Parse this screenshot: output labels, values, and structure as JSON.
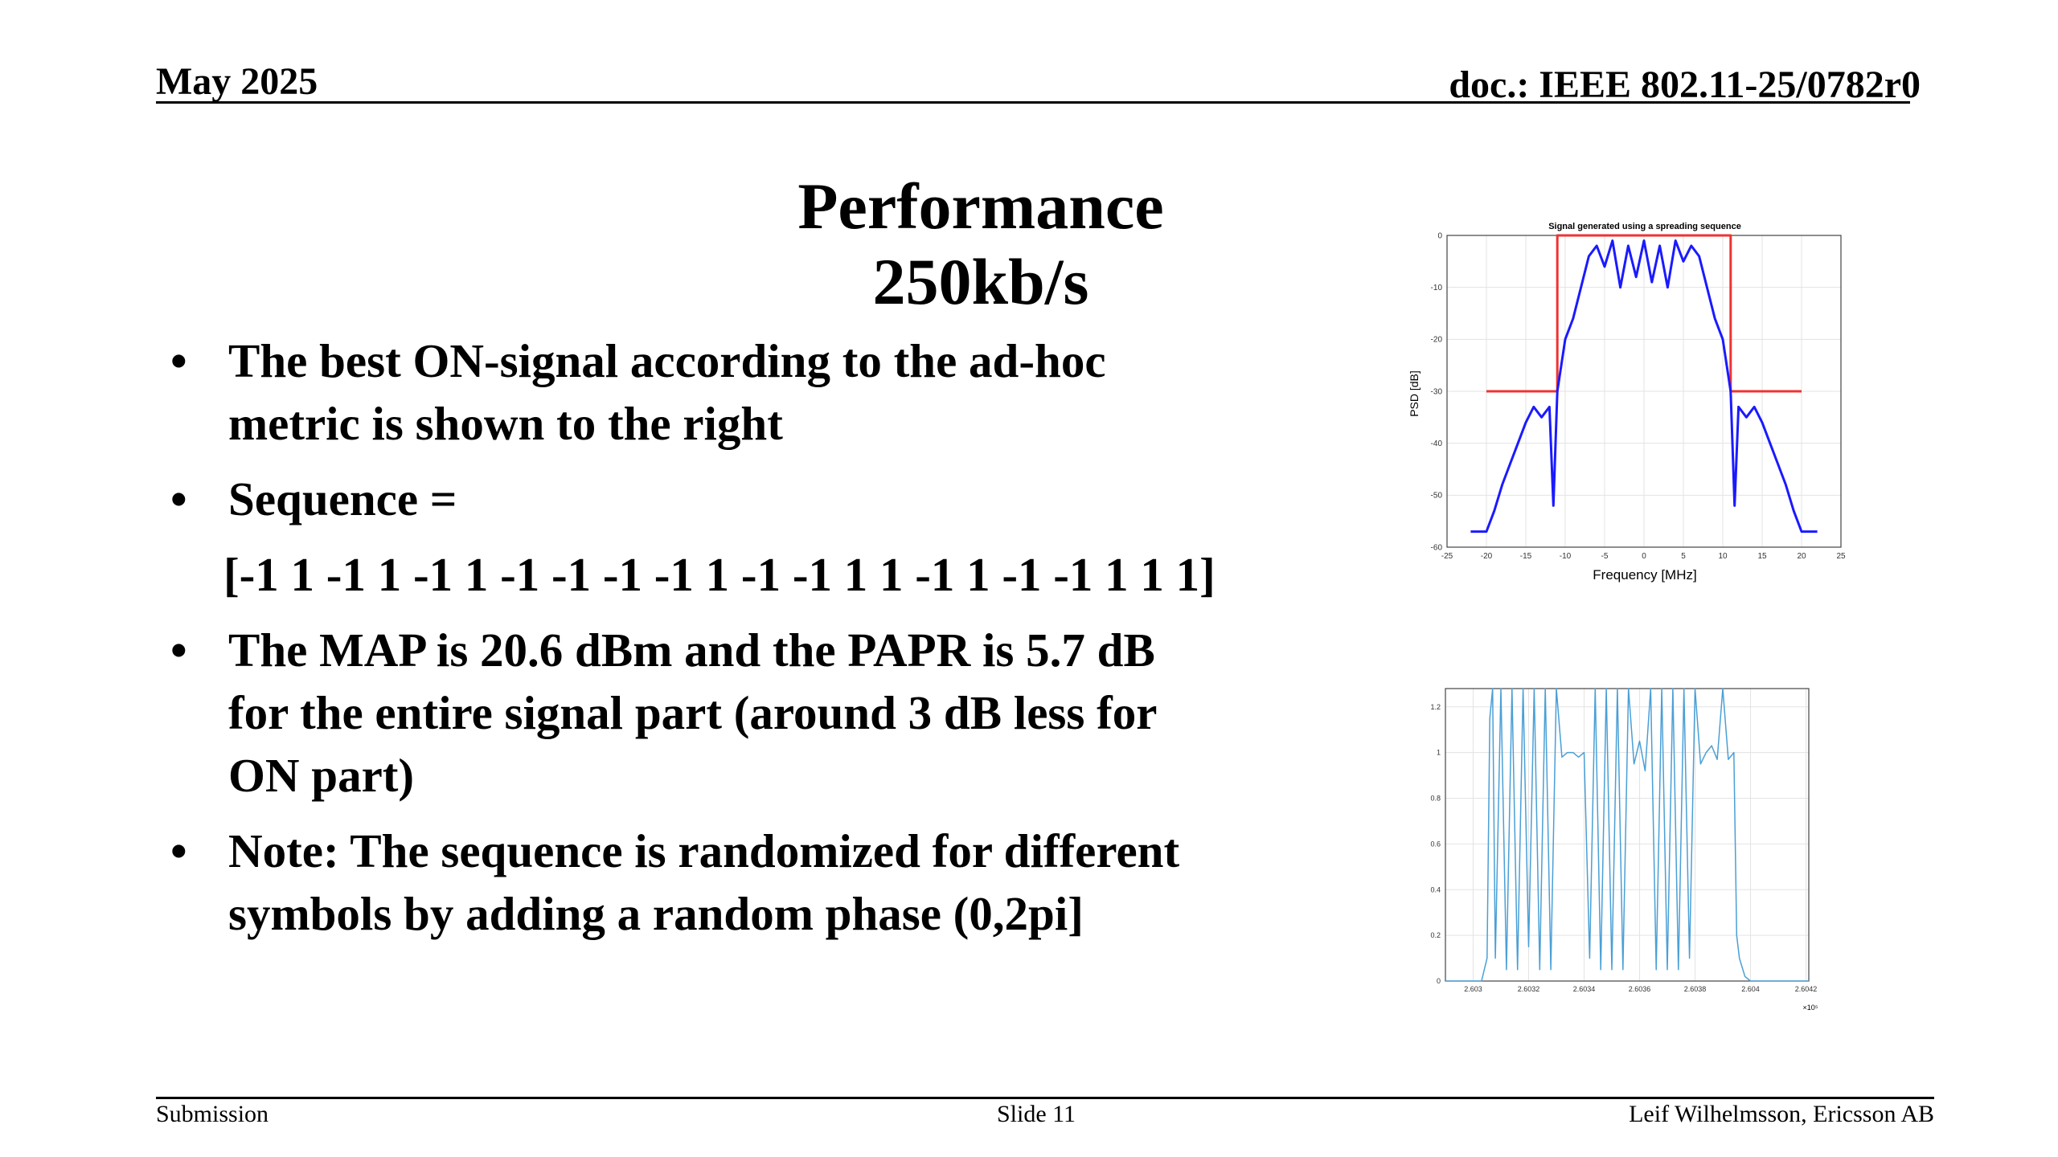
{
  "header": {
    "date": "May 2025",
    "doc": "doc.: IEEE 802.11-25/0782r0"
  },
  "title": "Performance 250kb/s",
  "bullets": [
    {
      "lines": [
        "The best ON-signal according to the ad-hoc",
        "metric is shown to the right"
      ]
    },
    {
      "lines": [
        "Sequence ="
      ]
    },
    {
      "lines": [
        "The MAP is 20.6 dBm and the PAPR is 5.7 dB",
        "for the entire signal part (around 3 dB less for",
        "ON part)"
      ]
    },
    {
      "lines": [
        "Note: The sequence is randomized for different",
        "symbols by adding a random phase (0,2pi]"
      ]
    }
  ],
  "sequence": "[-1 1 -1 1 -1 1 -1 -1 -1 -1 1 -1 -1 1 1 -1 1 -1 -1 1 1 1]",
  "bullet_char": "•",
  "chart_data": [
    {
      "type": "line",
      "title": "Signal generated using a spreading sequence",
      "xlabel": "Frequency [MHz]",
      "ylabel": "PSD [dB]",
      "xlim": [
        -25,
        25
      ],
      "ylim": [
        -60,
        0
      ],
      "xticks": [
        -25,
        -20,
        -15,
        -10,
        -5,
        0,
        5,
        10,
        15,
        20,
        25
      ],
      "yticks": [
        0,
        -10,
        -20,
        -30,
        -40,
        -50,
        -60
      ],
      "grid": true,
      "series": [
        {
          "color": "#ee3333",
          "x": [
            -20,
            -11,
            -11,
            11,
            11,
            20
          ],
          "y": [
            -30,
            -30,
            0,
            0,
            -30,
            -30
          ]
        },
        {
          "color": "#1a1aff",
          "x": [
            -22,
            -20,
            -19,
            -18,
            -17,
            -16,
            -15,
            -14,
            -13,
            -12,
            -11.5,
            -11,
            -10,
            -9,
            -8,
            -7,
            -6,
            -5,
            -4,
            -3,
            -2,
            -1,
            0,
            1,
            2,
            3,
            4,
            5,
            6,
            7,
            8,
            9,
            10,
            11,
            11.5,
            12,
            13,
            14,
            15,
            16,
            17,
            18,
            19,
            20,
            22
          ],
          "y": [
            -57,
            -57,
            -53,
            -48,
            -44,
            -40,
            -36,
            -33,
            -35,
            -33,
            -52,
            -30,
            -20,
            -16,
            -10,
            -4,
            -2,
            -6,
            -1,
            -10,
            -2,
            -8,
            -1,
            -9,
            -2,
            -10,
            -1,
            -5,
            -2,
            -4,
            -10,
            -16,
            -20,
            -30,
            -52,
            -33,
            -35,
            -33,
            -36,
            -40,
            -44,
            -48,
            -53,
            -57,
            -57
          ]
        }
      ]
    },
    {
      "type": "line",
      "x_multiplier": "×10⁵",
      "xlim": [
        2.6029,
        2.60421
      ],
      "ylim": [
        0,
        1.28
      ],
      "xticks": [
        2.603,
        2.6032,
        2.6034,
        2.6036,
        2.6038,
        2.604,
        2.6042
      ],
      "xtick_labels": [
        "2.603",
        "2.6032",
        "2.6034",
        "2.6036",
        "2.6038",
        "2.604",
        "2.6042"
      ],
      "yticks": [
        0,
        0.2,
        0.4,
        0.6,
        0.8,
        1,
        1.2
      ],
      "ytick_labels": [
        "0",
        "0.2",
        "0.4",
        "0.6",
        "0.8",
        "1",
        "1.2"
      ],
      "grid": true,
      "series": [
        {
          "color": "#4a9fd6",
          "x": [
            2.6029,
            2.60303,
            2.60305,
            2.60306,
            2.60307,
            2.60308,
            2.6031,
            2.60312,
            2.60314,
            2.60316,
            2.60318,
            2.6032,
            2.60322,
            2.60324,
            2.60326,
            2.60328,
            2.6033,
            2.60332,
            2.60334,
            2.60336,
            2.60338,
            2.6034,
            2.60342,
            2.60344,
            2.60346,
            2.60348,
            2.6035,
            2.60352,
            2.60354,
            2.60356,
            2.60358,
            2.6036,
            2.60362,
            2.60364,
            2.60366,
            2.60368,
            2.6037,
            2.60372,
            2.60374,
            2.60376,
            2.60378,
            2.6038,
            2.60382,
            2.60384,
            2.60386,
            2.60388,
            2.6039,
            2.60392,
            2.60394,
            2.60395,
            2.60396,
            2.60398,
            2.604,
            2.60421
          ],
          "y": [
            0,
            0,
            0.1,
            1.15,
            1.28,
            0.1,
            1.28,
            0.05,
            1.28,
            0.05,
            1.28,
            0.15,
            1.28,
            0.05,
            1.28,
            0.05,
            1.28,
            0.98,
            1.0,
            1.0,
            0.98,
            1.0,
            0.1,
            1.28,
            0.05,
            1.28,
            0.05,
            1.28,
            0.05,
            1.28,
            0.95,
            1.05,
            0.92,
            1.28,
            0.05,
            1.28,
            0.05,
            1.28,
            0.05,
            1.28,
            0.1,
            1.28,
            0.95,
            1.0,
            1.03,
            0.97,
            1.28,
            0.97,
            1.0,
            0.2,
            0.1,
            0.02,
            0,
            0
          ]
        }
      ]
    }
  ],
  "footer": {
    "left": "Submission",
    "mid": "Slide 11",
    "right": "Leif Wilhelmsson, Ericsson AB"
  }
}
